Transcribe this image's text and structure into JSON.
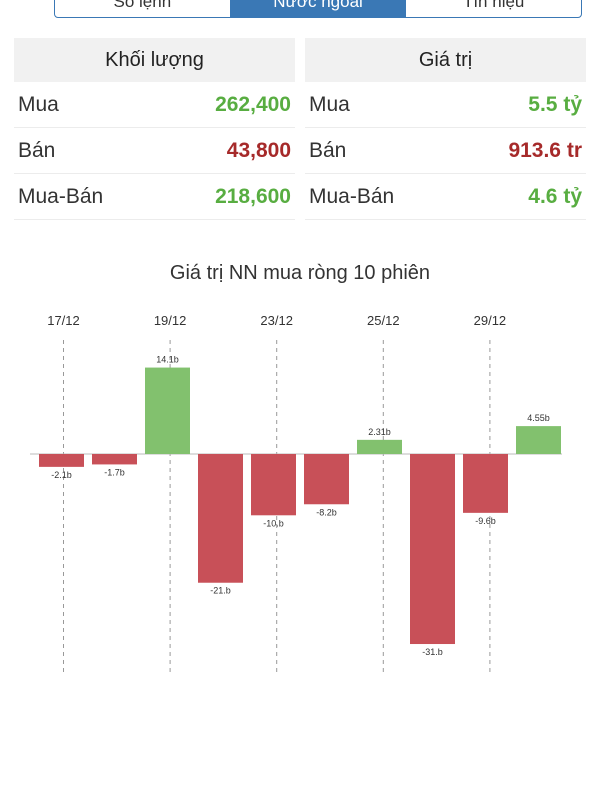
{
  "tabs": [
    {
      "label": "Sổ lệnh",
      "active": false
    },
    {
      "label": "Nước ngoài",
      "active": true
    },
    {
      "label": "Tín hiệu",
      "active": false
    }
  ],
  "volume": {
    "header": "Khối lượng",
    "rows": [
      {
        "label": "Mua",
        "value": "262,400"
      },
      {
        "label": "Bán",
        "value": "43,800"
      },
      {
        "label": "Mua-Bán",
        "value": "218,600"
      }
    ]
  },
  "value": {
    "header": "Giá trị",
    "rows": [
      {
        "label": "Mua",
        "value": "5.5 tỷ"
      },
      {
        "label": "Bán",
        "value": "913.6 tr"
      },
      {
        "label": "Mua-Bán",
        "value": "4.6 tỷ"
      }
    ]
  },
  "colors": {
    "positive": "#82c16e",
    "negative": "#c85058",
    "buy_text": "#58ad41",
    "sell_text": "#a62a2a",
    "tab_active": "#3a78b5"
  },
  "chart_data": {
    "type": "bar",
    "title": "Giá trị NN mua ròng 10 phiên",
    "date_labels": [
      "17/12",
      "19/12",
      "23/12",
      "25/12",
      "29/12"
    ],
    "values": [
      -2.1,
      -1.7,
      14.1,
      -21,
      -10,
      -8.2,
      2.31,
      -31,
      -9.6,
      4.55
    ],
    "data_labels": [
      "-2.1b",
      "-1.7b",
      "14.1b",
      "-21.b",
      "-10.b",
      "-8.2b",
      "2.31b",
      "-31.b",
      "-9.6b",
      "4.55b"
    ],
    "ylim": [
      -36,
      16
    ],
    "grid": true
  }
}
